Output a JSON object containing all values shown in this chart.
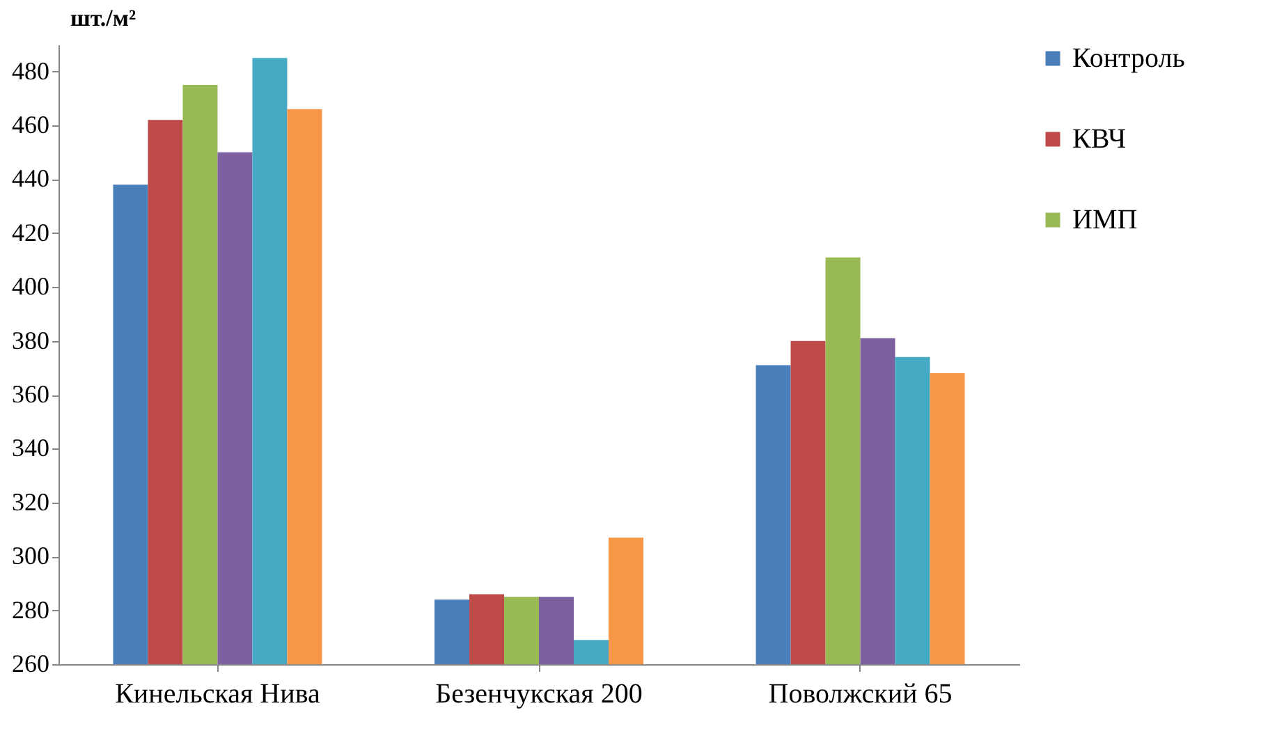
{
  "chart_data": {
    "type": "bar",
    "ylabel": "шт./м²",
    "categories": [
      "Кинельская Нива",
      "Безенчукская 200",
      "Поволжский 65"
    ],
    "series": [
      {
        "name": "Контроль",
        "color": "#4a7ebb",
        "values": [
          438,
          284,
          371
        ]
      },
      {
        "name": "КВЧ",
        "color": "#be4b48",
        "values": [
          462,
          286,
          380
        ]
      },
      {
        "name": "ИМП",
        "color": "#98b954",
        "values": [
          475,
          285,
          411
        ]
      },
      {
        "color": "#7d60a0",
        "values": [
          450,
          285,
          381
        ]
      },
      {
        "color": "#46aac5",
        "values": [
          485,
          269,
          374
        ]
      },
      {
        "color": "#f79646",
        "values": [
          466,
          307,
          368
        ]
      }
    ],
    "ylim": [
      260,
      490
    ],
    "yticks": [
      260,
      280,
      300,
      320,
      340,
      360,
      380,
      400,
      420,
      440,
      460,
      480
    ],
    "grid": false,
    "legend": "right"
  }
}
